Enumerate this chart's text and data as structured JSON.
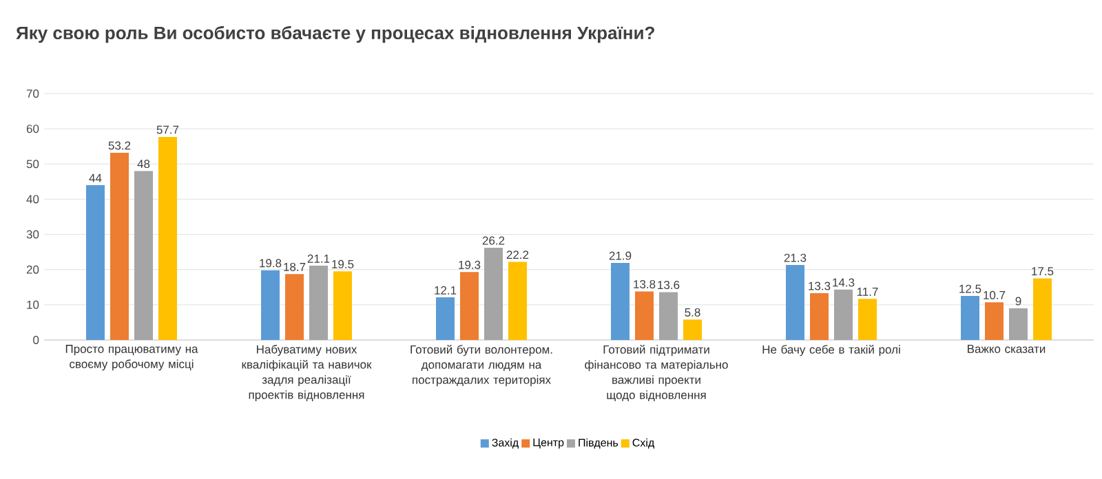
{
  "chart_data": {
    "type": "bar",
    "title": "Яку свою роль Ви особисто вбачаєте у процесах відновлення України?",
    "categories": [
      "Просто працюватиму на своєму робочому місці",
      "Набуватиму нових кваліфікацій та навичок задля реалізації проектів відновлення",
      "Готовий бути волонтером. допомагати людям на постраждалих територіях",
      "Готовий підтримати фінансово та матеріально важливі проекти щодо відновлення",
      "Не бачу себе в такій ролі",
      "Важко сказати"
    ],
    "series": [
      {
        "name": "Захід",
        "color": "#5b9bd5",
        "values": [
          44,
          19.8,
          12.1,
          21.9,
          21.3,
          12.5
        ]
      },
      {
        "name": "Центр",
        "color": "#ed7d31",
        "values": [
          53.2,
          18.7,
          19.3,
          13.8,
          13.3,
          10.7
        ]
      },
      {
        "name": "Південь",
        "color": "#a5a5a5",
        "values": [
          48,
          21.1,
          26.2,
          13.6,
          14.3,
          9
        ]
      },
      {
        "name": "Схід",
        "color": "#ffc000",
        "values": [
          57.7,
          19.5,
          22.2,
          5.8,
          11.7,
          17.5
        ]
      }
    ],
    "ylim": [
      0,
      70
    ],
    "yticks": [
      0,
      10,
      20,
      30,
      40,
      50,
      60,
      70
    ],
    "grid": "y",
    "legend": "bottom",
    "data_labels": true
  }
}
